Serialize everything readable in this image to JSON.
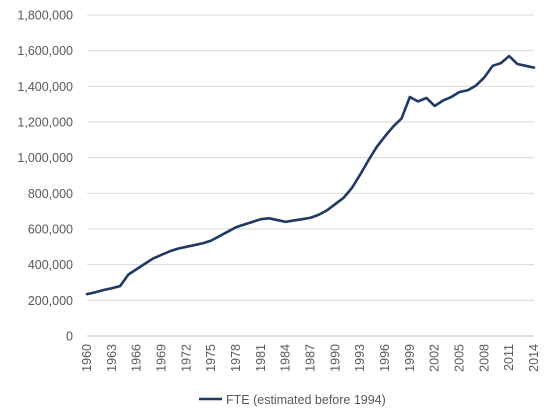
{
  "chart_data": {
    "type": "line",
    "title": "",
    "xlabel": "",
    "ylabel": "",
    "ylim": [
      0,
      1800000
    ],
    "xlim": [
      1960,
      2014
    ],
    "grid": true,
    "legend_position": "bottom",
    "y_ticks": [
      "0",
      "200,000",
      "400,000",
      "600,000",
      "800,000",
      "1,000,000",
      "1,200,000",
      "1,400,000",
      "1,600,000",
      "1,800,000"
    ],
    "x_ticks": [
      "1960",
      "1963",
      "1966",
      "1969",
      "1972",
      "1975",
      "1978",
      "1981",
      "1984",
      "1987",
      "1990",
      "1993",
      "1996",
      "1999",
      "2002",
      "2005",
      "2008",
      "2011",
      "2014"
    ],
    "series": [
      {
        "name": "FTE (estimated before 1994)",
        "color": "#1f3864",
        "x": [
          1960,
          1961,
          1962,
          1963,
          1964,
          1965,
          1966,
          1967,
          1968,
          1969,
          1970,
          1971,
          1972,
          1973,
          1974,
          1975,
          1976,
          1977,
          1978,
          1979,
          1980,
          1981,
          1982,
          1983,
          1984,
          1985,
          1986,
          1987,
          1988,
          1989,
          1990,
          1991,
          1992,
          1993,
          1994,
          1995,
          1996,
          1997,
          1998,
          1999,
          2000,
          2001,
          2002,
          2003,
          2004,
          2005,
          2006,
          2007,
          2008,
          2009,
          2010,
          2011,
          2012,
          2013,
          2014
        ],
        "values": [
          235000,
          245000,
          258000,
          268000,
          280000,
          345000,
          375000,
          405000,
          435000,
          455000,
          475000,
          490000,
          500000,
          510000,
          520000,
          535000,
          560000,
          585000,
          610000,
          625000,
          640000,
          655000,
          660000,
          650000,
          640000,
          648000,
          655000,
          663000,
          680000,
          705000,
          740000,
          775000,
          830000,
          905000,
          985000,
          1060000,
          1120000,
          1175000,
          1220000,
          1340000,
          1315000,
          1335000,
          1290000,
          1320000,
          1340000,
          1368000,
          1378000,
          1405000,
          1450000,
          1515000,
          1530000,
          1570000,
          1525000,
          1515000,
          1505000
        ]
      }
    ]
  }
}
